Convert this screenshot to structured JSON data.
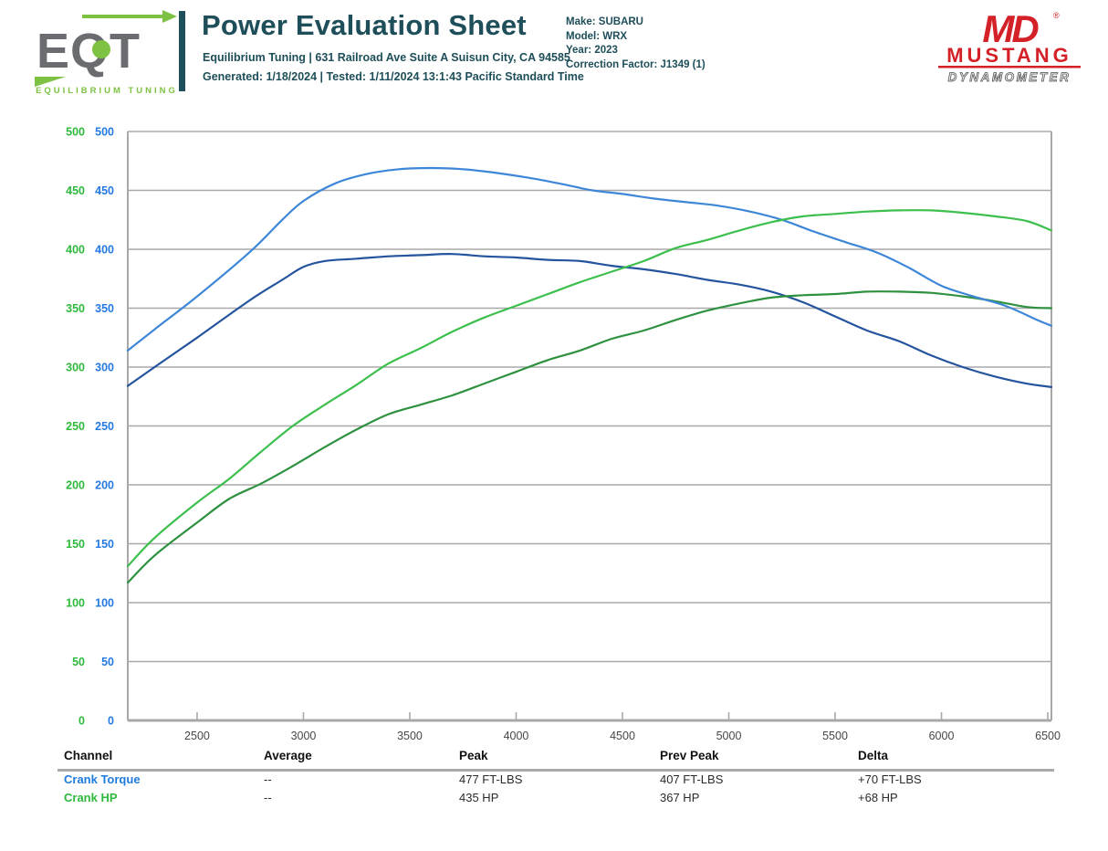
{
  "header": {
    "logo": {
      "monogram": "EQT",
      "tagline": "EQUILIBRIUM TUNING"
    },
    "title": "Power Evaluation Sheet",
    "subtitle": "Equilibrium Tuning | 631 Railroad Ave Suite A Suisun City, CA 94585",
    "generated_line": "Generated: 1/18/2024 | Tested: 1/11/2024 13:1:43 Pacific Standard Time",
    "vehicle": {
      "make": "Make: SUBARU",
      "model": "Model: WRX",
      "year": "Year: 2023",
      "correction": "Correction Factor: J1349 (1)"
    },
    "dyno_logo": {
      "monogram": "MD",
      "registered": "®",
      "name": "MUSTANG",
      "sub": "DYNAMOMETER"
    }
  },
  "colors": {
    "title_teal": "#1d4e59",
    "eqt_green": "#7dc243",
    "eqt_gray": "#6a6c6f",
    "md_red": "#d42027",
    "axis_label_green": "#2eb93c",
    "axis_label_blue": "#2479e2",
    "grid_gray": "#a8a8a8",
    "x_label_gray": "#474747",
    "curve_torque": "#3e87d8",
    "curve_torque_prev": "#24549e",
    "curve_hp": "#3cbf4d",
    "curve_hp_prev": "#2e9140"
  },
  "chart_data": {
    "type": "line",
    "title": "",
    "xlabel": "",
    "ylabel": "",
    "xlim": [
      2174,
      6517
    ],
    "ylim": [
      0,
      500
    ],
    "x_ticks": [
      2500,
      3000,
      3500,
      4000,
      4500,
      5000,
      5500,
      6000,
      6500
    ],
    "y_ticks": [
      0,
      50,
      100,
      150,
      200,
      250,
      300,
      350,
      400,
      450,
      500
    ],
    "grid": "horizontal-only",
    "legend_position": "none (channel colors shown in table below)",
    "series": [
      {
        "name": "Crank Torque (Prev Run)",
        "units": "FT-LBS",
        "color": "#24549e",
        "points": [
          [
            2174,
            284
          ],
          [
            2300,
            300
          ],
          [
            2500,
            325
          ],
          [
            2750,
            357
          ],
          [
            2900,
            374
          ],
          [
            3000,
            385
          ],
          [
            3100,
            390
          ],
          [
            3250,
            392
          ],
          [
            3400,
            394
          ],
          [
            3550,
            395
          ],
          [
            3700,
            396
          ],
          [
            3850,
            394
          ],
          [
            4000,
            393
          ],
          [
            4150,
            391
          ],
          [
            4300,
            390
          ],
          [
            4450,
            386
          ],
          [
            4600,
            383
          ],
          [
            4750,
            379
          ],
          [
            4900,
            374
          ],
          [
            5050,
            370
          ],
          [
            5200,
            364
          ],
          [
            5350,
            355
          ],
          [
            5500,
            343
          ],
          [
            5650,
            331
          ],
          [
            5800,
            322
          ],
          [
            5950,
            310
          ],
          [
            6100,
            300
          ],
          [
            6250,
            292
          ],
          [
            6400,
            286
          ],
          [
            6517,
            283
          ]
        ]
      },
      {
        "name": "Crank HP (Prev Run)",
        "units": "HP",
        "color": "#2e9140",
        "points": [
          [
            2174,
            117
          ],
          [
            2300,
            140
          ],
          [
            2500,
            168
          ],
          [
            2650,
            188
          ],
          [
            2800,
            201
          ],
          [
            2950,
            216
          ],
          [
            3100,
            232
          ],
          [
            3250,
            247
          ],
          [
            3400,
            260
          ],
          [
            3550,
            268
          ],
          [
            3700,
            276
          ],
          [
            3850,
            286
          ],
          [
            4000,
            296
          ],
          [
            4150,
            306
          ],
          [
            4300,
            314
          ],
          [
            4450,
            324
          ],
          [
            4600,
            331
          ],
          [
            4750,
            340
          ],
          [
            4900,
            348
          ],
          [
            5050,
            354
          ],
          [
            5200,
            359
          ],
          [
            5350,
            361
          ],
          [
            5500,
            362
          ],
          [
            5650,
            364
          ],
          [
            5800,
            364
          ],
          [
            5950,
            363
          ],
          [
            6100,
            360
          ],
          [
            6250,
            356
          ],
          [
            6400,
            351
          ],
          [
            6517,
            350
          ]
        ]
      },
      {
        "name": "Crank Torque",
        "units": "FT-LBS",
        "color": "#3e87d8",
        "points": [
          [
            2174,
            314
          ],
          [
            2300,
            332
          ],
          [
            2500,
            360
          ],
          [
            2750,
            398
          ],
          [
            2900,
            425
          ],
          [
            3000,
            441
          ],
          [
            3150,
            456
          ],
          [
            3300,
            464
          ],
          [
            3450,
            468
          ],
          [
            3600,
            469
          ],
          [
            3750,
            468
          ],
          [
            3900,
            465
          ],
          [
            4050,
            461
          ],
          [
            4200,
            456
          ],
          [
            4360,
            450
          ],
          [
            4500,
            447
          ],
          [
            4650,
            443
          ],
          [
            4800,
            440
          ],
          [
            4950,
            437
          ],
          [
            5100,
            432
          ],
          [
            5250,
            425
          ],
          [
            5400,
            415
          ],
          [
            5550,
            406
          ],
          [
            5700,
            397
          ],
          [
            5850,
            384
          ],
          [
            6000,
            369
          ],
          [
            6150,
            360
          ],
          [
            6300,
            352
          ],
          [
            6450,
            340
          ],
          [
            6517,
            335
          ]
        ]
      },
      {
        "name": "Crank HP",
        "units": "HP",
        "color": "#3cbf4d",
        "points": [
          [
            2174,
            131
          ],
          [
            2300,
            155
          ],
          [
            2500,
            185
          ],
          [
            2650,
            205
          ],
          [
            2800,
            228
          ],
          [
            2950,
            250
          ],
          [
            3100,
            268
          ],
          [
            3250,
            285
          ],
          [
            3400,
            303
          ],
          [
            3550,
            316
          ],
          [
            3700,
            330
          ],
          [
            3850,
            342
          ],
          [
            4000,
            352
          ],
          [
            4150,
            362
          ],
          [
            4300,
            372
          ],
          [
            4450,
            381
          ],
          [
            4600,
            390
          ],
          [
            4750,
            401
          ],
          [
            4900,
            408
          ],
          [
            5050,
            416
          ],
          [
            5200,
            423
          ],
          [
            5350,
            428
          ],
          [
            5500,
            430
          ],
          [
            5650,
            432
          ],
          [
            5800,
            433
          ],
          [
            5950,
            433
          ],
          [
            6100,
            431
          ],
          [
            6250,
            428
          ],
          [
            6400,
            424
          ],
          [
            6517,
            416
          ]
        ]
      }
    ]
  },
  "table": {
    "headers": [
      "Channel",
      "Average",
      "Peak",
      "Prev Peak",
      "Delta"
    ],
    "rows": [
      {
        "channel": "Crank Torque",
        "average": "--",
        "peak": "477 FT-LBS",
        "prev_peak": "407 FT-LBS",
        "delta": "+70 FT-LBS"
      },
      {
        "channel": "Crank HP",
        "average": "--",
        "peak": "435 HP",
        "prev_peak": "367 HP",
        "delta": "+68 HP"
      }
    ]
  }
}
